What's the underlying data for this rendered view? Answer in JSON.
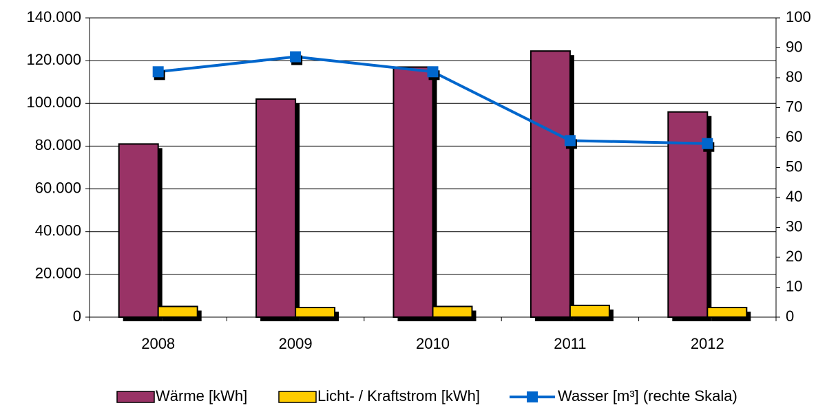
{
  "chart_data": {
    "type": "bar_line",
    "categories": [
      "2008",
      "2009",
      "2010",
      "2011",
      "2012"
    ],
    "series": [
      {
        "name": "Wärme [kWh]",
        "color": "#993366",
        "values": [
          81000,
          102000,
          117000,
          124500,
          96000
        ]
      },
      {
        "name": "Licht- / Kraftstrom [kWh]",
        "color": "#ffcc00",
        "values": [
          5000,
          4500,
          5000,
          5500,
          4500
        ]
      },
      {
        "name": "Wasser [m³] (rechte Skala)",
        "color": "#0066cc",
        "values": [
          82,
          87,
          82,
          59,
          58
        ],
        "axis": "y2",
        "type": "line"
      }
    ],
    "ylim": [
      0,
      140000
    ],
    "yticks": [
      0,
      {
        "value": 20000,
        "label": "20.000"
      },
      {
        "value": 40000,
        "label": "40.000"
      },
      {
        "value": 60000,
        "label": "60.000"
      },
      {
        "value": 80000,
        "label": "80.000"
      },
      {
        "value": 100000,
        "label": "100.000"
      },
      {
        "value": 120000,
        "label": "120.000"
      },
      {
        "value": 140000,
        "label": "140.000"
      }
    ],
    "y2lim": [
      0,
      100
    ],
    "y2ticks": [
      0,
      10,
      20,
      30,
      40,
      50,
      60,
      70,
      80,
      90,
      100
    ],
    "grid": true,
    "legend": "bottom"
  }
}
